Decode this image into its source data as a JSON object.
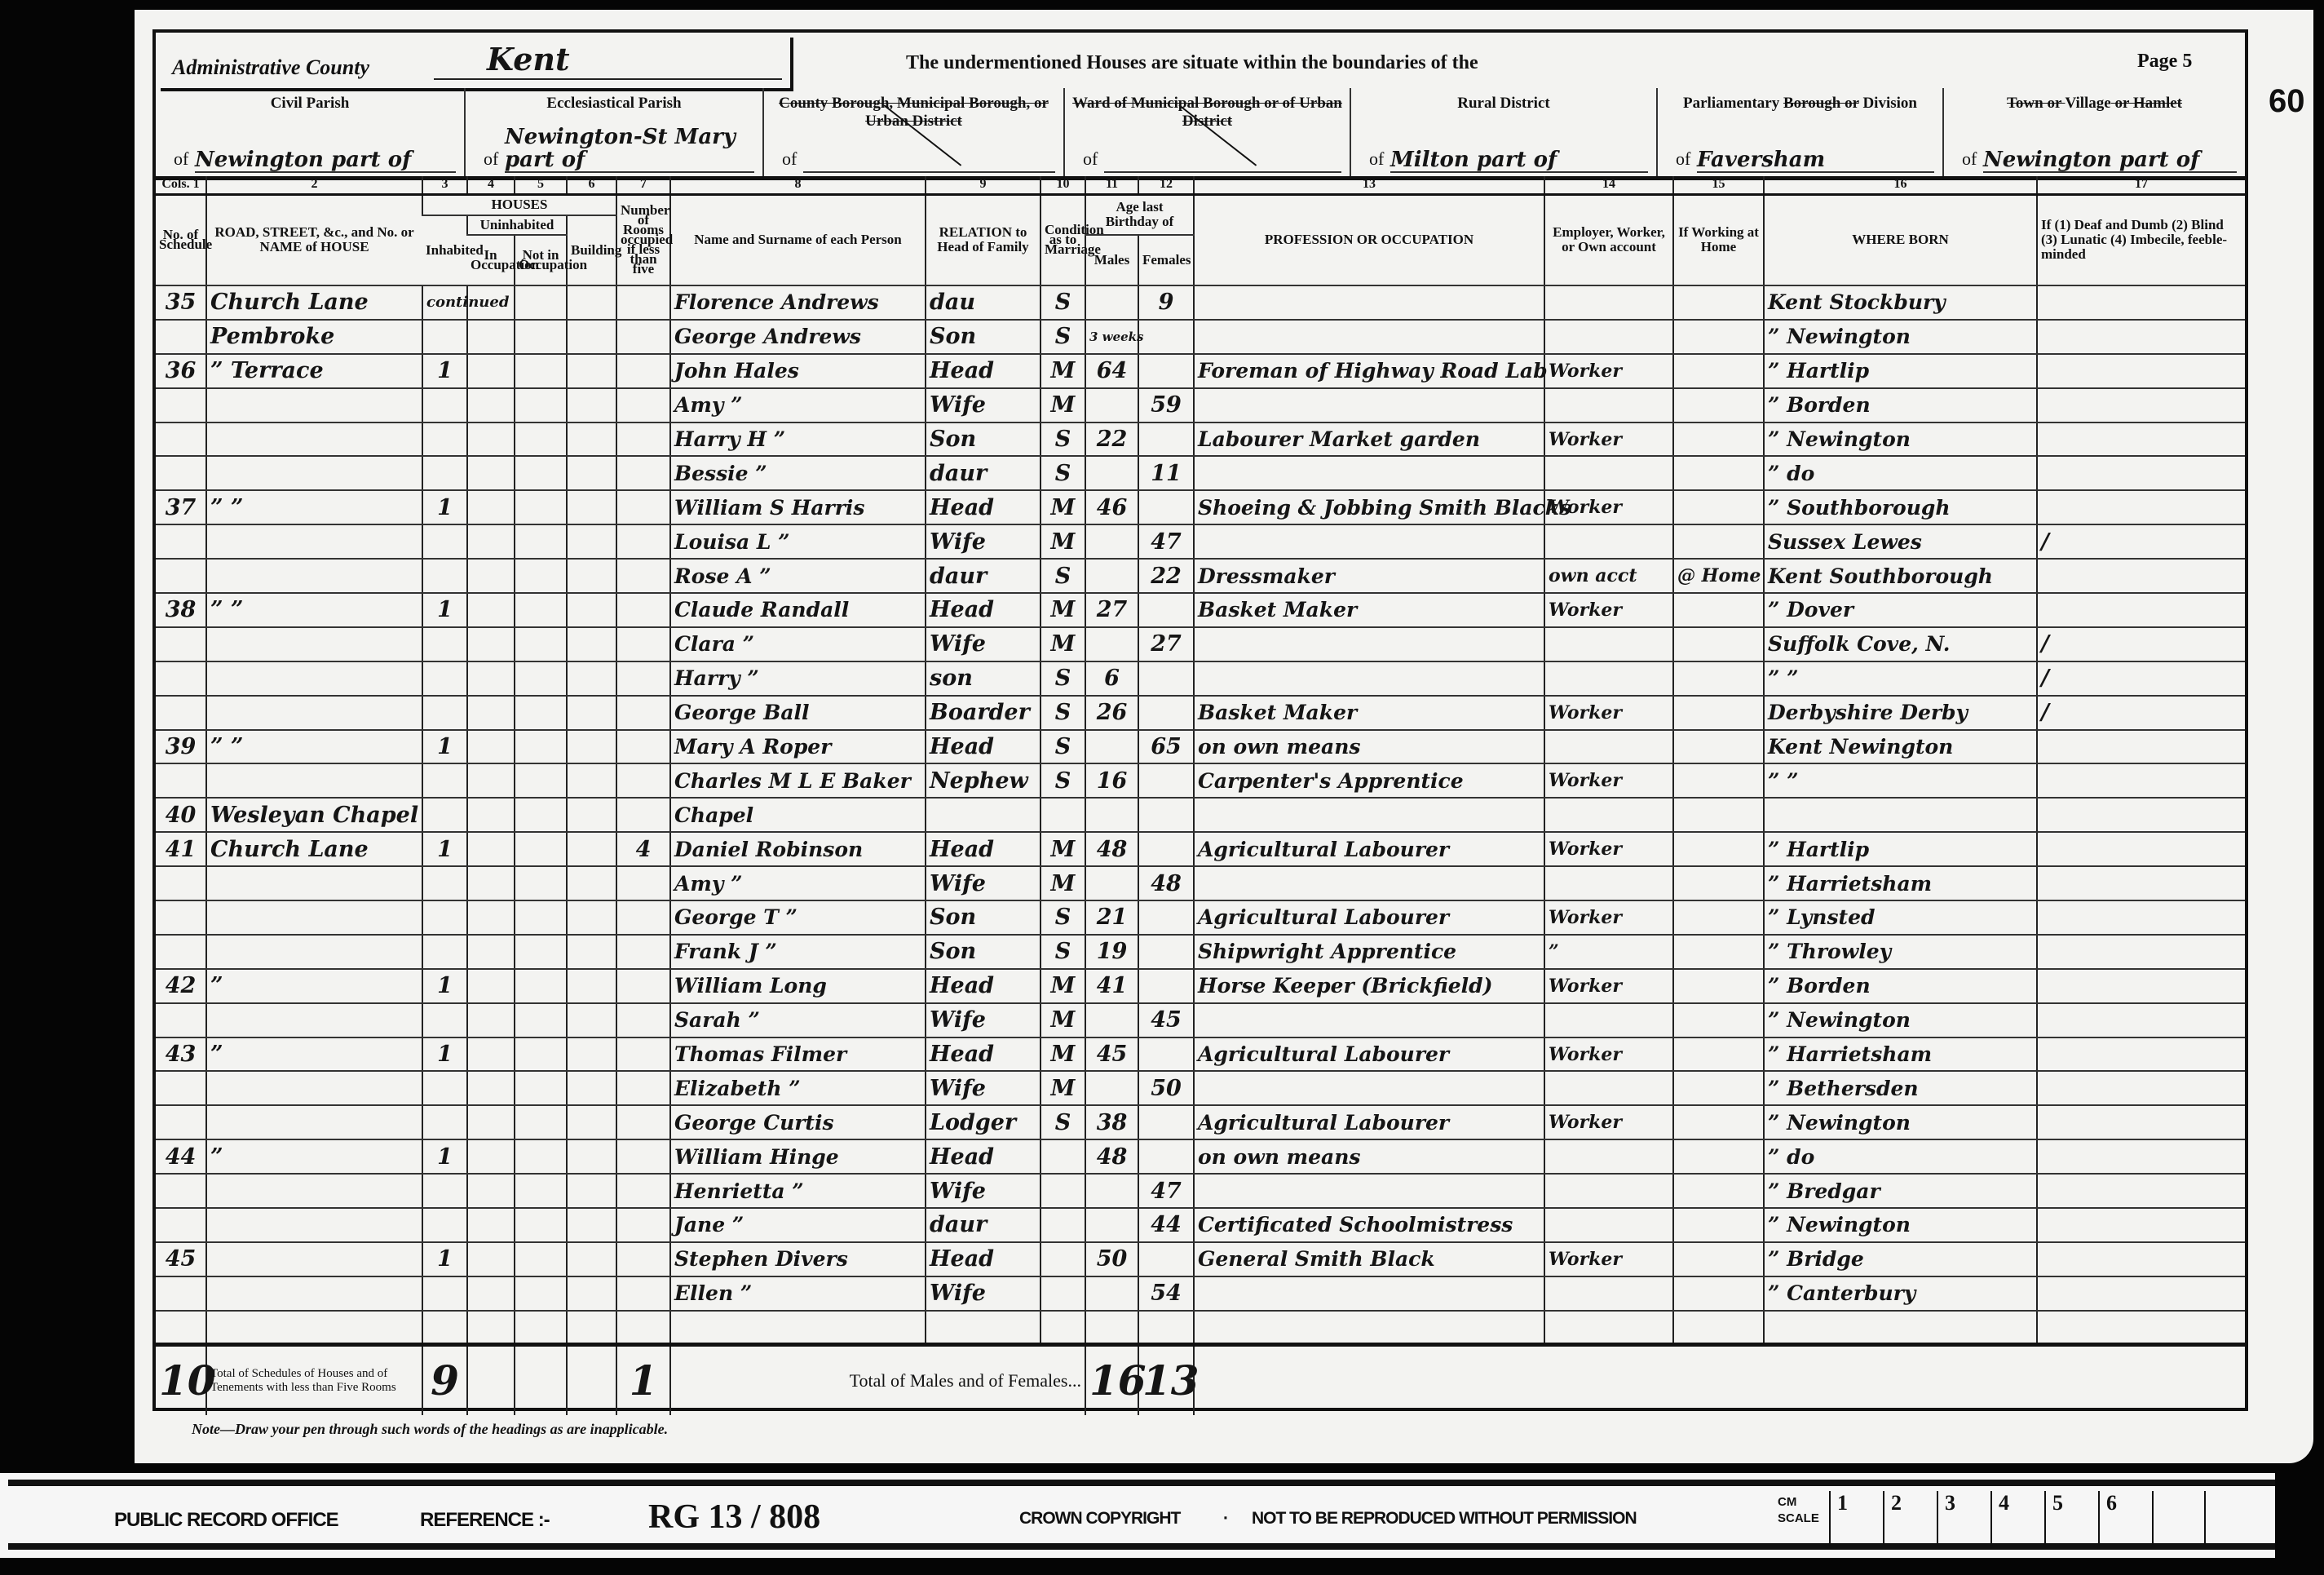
{
  "header": {
    "county_label": "Administrative County",
    "county_value": "Kent",
    "boundary_text": "The undermentioned Houses are situate within the boundaries of the",
    "page_label": "Page 5",
    "folio": "60"
  },
  "areas": [
    {
      "label_parts": [
        {
          "text": "Civil Parish",
          "struck": false
        }
      ],
      "of": "of",
      "value": "Newington part of",
      "struck_diag": false
    },
    {
      "label_parts": [
        {
          "text": "Ecclesiastical Parish",
          "struck": false
        }
      ],
      "of": "of",
      "value": "Newington-St Mary part of",
      "struck_diag": false
    },
    {
      "label_parts": [
        {
          "text": "County Borough, Municipal Borough, or Urban District",
          "struck": true
        }
      ],
      "of": "of",
      "value": "",
      "struck_diag": true
    },
    {
      "label_parts": [
        {
          "text": "Ward of Municipal Borough or of Urban District",
          "struck": true
        }
      ],
      "of": "of",
      "value": "",
      "struck_diag": true
    },
    {
      "label_parts": [
        {
          "text": "Rural District",
          "struck": false
        }
      ],
      "of": "of",
      "value": "Milton part of",
      "struck_diag": false
    },
    {
      "label_parts": [
        {
          "text": "Parliamentary ",
          "struck": false
        },
        {
          "text": "Borough",
          "struck": true
        },
        {
          "text": " or",
          "struck": true
        },
        {
          "text": " Division",
          "struck": false
        }
      ],
      "of": "of",
      "value": "Faversham",
      "struck_diag": false
    },
    {
      "label_parts": [
        {
          "text": "Town or ",
          "struck": true
        },
        {
          "text": "Village",
          "struck": false
        },
        {
          "text": " or Hamlet",
          "struck": true
        }
      ],
      "of": "of",
      "value": "Newington part of",
      "struck_diag": false
    }
  ],
  "column_numbers": [
    "Cols. 1",
    "2",
    "3",
    "4",
    "5",
    "6",
    "7",
    "8",
    "9",
    "10",
    "11",
    "12",
    "13",
    "14",
    "15",
    "16",
    "17"
  ],
  "columns": {
    "schedule": "No. of Schedule",
    "road": "ROAD, STREET, &c., and No. or NAME of HOUSE",
    "houses": "HOUSES",
    "inhabited": "Inhabited",
    "uninhabited": "Uninhabited",
    "in_occupation": "In Occupation",
    "not_in_occupation": "Not in Occupation",
    "building": "Building",
    "rooms": "Number of Rooms occupied if less than five",
    "name": "Name and Surname of each Person",
    "relation": "RELATION to Head of Family",
    "condition": "Condition as to Marriage",
    "age": "Age last Birthday of",
    "males": "Males",
    "females": "Females",
    "occupation": "PROFESSION OR OCCUPATION",
    "employment": "Employer, Worker, or Own account",
    "at_home": "If Working at Home",
    "born": "WHERE BORN",
    "infirmity": "If (1) Deaf and Dumb (2) Blind (3) Lunatic (4) Imbecile, feeble-minded"
  },
  "rows": [
    {
      "schedule": "35",
      "road": "Church Lane",
      "inhabited": "continued",
      "rooms": "",
      "name": "Florence Andrews",
      "relation": "dau",
      "condition": "S",
      "age_m": "",
      "age_f": "9",
      "occupation": "",
      "employment": "",
      "at_home": "",
      "born": "Kent Stockbury",
      "infirmity": ""
    },
    {
      "schedule": "",
      "road": "Pembroke",
      "inhabited": "",
      "rooms": "",
      "name": "George Andrews",
      "relation": "Son",
      "condition": "S",
      "age_m": "3 weeks",
      "age_f": "",
      "occupation": "",
      "employment": "",
      "at_home": "",
      "born": "” Newington",
      "infirmity": ""
    },
    {
      "schedule": "36",
      "road": "” Terrace",
      "inhabited": "1",
      "rooms": "",
      "name": "John Hales",
      "relation": "Head",
      "condition": "M",
      "age_m": "64",
      "age_f": "",
      "occupation": "Foreman of Highway Road Lab",
      "employment": "Worker",
      "at_home": "",
      "born": "” Hartlip",
      "infirmity": ""
    },
    {
      "schedule": "",
      "road": "",
      "inhabited": "",
      "rooms": "",
      "name": "Amy ”",
      "relation": "Wife",
      "condition": "M",
      "age_m": "",
      "age_f": "59",
      "occupation": "",
      "employment": "",
      "at_home": "",
      "born": "” Borden",
      "infirmity": ""
    },
    {
      "schedule": "",
      "road": "",
      "inhabited": "",
      "rooms": "",
      "name": "Harry H ”",
      "relation": "Son",
      "condition": "S",
      "age_m": "22",
      "age_f": "",
      "occupation": "Labourer Market garden",
      "employment": "Worker",
      "at_home": "",
      "born": "” Newington",
      "infirmity": ""
    },
    {
      "schedule": "",
      "road": "",
      "inhabited": "",
      "rooms": "",
      "name": "Bessie ”",
      "relation": "daur",
      "condition": "S",
      "age_m": "",
      "age_f": "11",
      "occupation": "",
      "employment": "",
      "at_home": "",
      "born": "” do",
      "infirmity": ""
    },
    {
      "schedule": "37",
      "road": "”        ”",
      "inhabited": "1",
      "rooms": "",
      "name": "William S Harris",
      "relation": "Head",
      "condition": "M",
      "age_m": "46",
      "age_f": "",
      "occupation": "Shoeing & Jobbing Smith Blacks",
      "employment": "Worker",
      "at_home": "",
      "born": "” Southborough",
      "infirmity": ""
    },
    {
      "schedule": "",
      "road": "",
      "inhabited": "",
      "rooms": "",
      "name": "Louisa L ”",
      "relation": "Wife",
      "condition": "M",
      "age_m": "",
      "age_f": "47",
      "occupation": "",
      "employment": "",
      "at_home": "",
      "born": "Sussex Lewes",
      "infirmity": "/"
    },
    {
      "schedule": "",
      "road": "",
      "inhabited": "",
      "rooms": "",
      "name": "Rose A ”",
      "relation": "daur",
      "condition": "S",
      "age_m": "",
      "age_f": "22",
      "occupation": "Dressmaker",
      "employment": "own acct",
      "at_home": "@ Home",
      "born": "Kent Southborough",
      "infirmity": ""
    },
    {
      "schedule": "38",
      "road": "”        ”",
      "inhabited": "1",
      "rooms": "",
      "name": "Claude Randall",
      "relation": "Head",
      "condition": "M",
      "age_m": "27",
      "age_f": "",
      "occupation": "Basket Maker",
      "employment": "Worker",
      "at_home": "",
      "born": "” Dover",
      "infirmity": ""
    },
    {
      "schedule": "",
      "road": "",
      "inhabited": "",
      "rooms": "",
      "name": "Clara ”",
      "relation": "Wife",
      "condition": "M",
      "age_m": "",
      "age_f": "27",
      "occupation": "",
      "employment": "",
      "at_home": "",
      "born": "Suffolk Cove, N.",
      "infirmity": "/"
    },
    {
      "schedule": "",
      "road": "",
      "inhabited": "",
      "rooms": "",
      "name": "Harry ”",
      "relation": "son",
      "condition": "S",
      "age_m": "6",
      "age_f": "",
      "occupation": "",
      "employment": "",
      "at_home": "",
      "born": "”   ”",
      "infirmity": "/"
    },
    {
      "schedule": "",
      "road": "",
      "inhabited": "",
      "rooms": "",
      "name": "George Ball",
      "relation": "Boarder",
      "condition": "S",
      "age_m": "26",
      "age_f": "",
      "occupation": "Basket Maker",
      "employment": "Worker",
      "at_home": "",
      "born": "Derbyshire Derby",
      "infirmity": "/"
    },
    {
      "schedule": "39",
      "road": "”        ”",
      "inhabited": "1",
      "rooms": "",
      "name": "Mary A Roper",
      "relation": "Head",
      "condition": "S",
      "age_m": "",
      "age_f": "65",
      "occupation": "on own means",
      "employment": "",
      "at_home": "",
      "born": "Kent Newington",
      "infirmity": ""
    },
    {
      "schedule": "",
      "road": "",
      "inhabited": "",
      "rooms": "",
      "name": "Charles M L E Baker",
      "relation": "Nephew",
      "condition": "S",
      "age_m": "16",
      "age_f": "",
      "occupation": "Carpenter's Apprentice",
      "employment": "Worker",
      "at_home": "",
      "born": "”   ”",
      "infirmity": ""
    },
    {
      "schedule": "40",
      "road": "Wesleyan Chapel",
      "inhabited": "",
      "rooms": "",
      "name": "Chapel",
      "relation": "",
      "condition": "",
      "age_m": "",
      "age_f": "",
      "occupation": "",
      "employment": "",
      "at_home": "",
      "born": "",
      "infirmity": ""
    },
    {
      "schedule": "41",
      "road": "Church Lane",
      "inhabited": "1",
      "rooms": "4",
      "name": "Daniel Robinson",
      "relation": "Head",
      "condition": "M",
      "age_m": "48",
      "age_f": "",
      "occupation": "Agricultural Labourer",
      "employment": "Worker",
      "at_home": "",
      "born": "” Hartlip",
      "infirmity": ""
    },
    {
      "schedule": "",
      "road": "",
      "inhabited": "",
      "rooms": "",
      "name": "Amy ”",
      "relation": "Wife",
      "condition": "M",
      "age_m": "",
      "age_f": "48",
      "occupation": "",
      "employment": "",
      "at_home": "",
      "born": "” Harrietsham",
      "infirmity": ""
    },
    {
      "schedule": "",
      "road": "",
      "inhabited": "",
      "rooms": "",
      "name": "George T ”",
      "relation": "Son",
      "condition": "S",
      "age_m": "21",
      "age_f": "",
      "occupation": "Agricultural Labourer",
      "employment": "Worker",
      "at_home": "",
      "born": "” Lynsted",
      "infirmity": ""
    },
    {
      "schedule": "",
      "road": "",
      "inhabited": "",
      "rooms": "",
      "name": "Frank J ”",
      "relation": "Son",
      "condition": "S",
      "age_m": "19",
      "age_f": "",
      "occupation": "Shipwright Apprentice",
      "employment": "”",
      "at_home": "",
      "born": "” Throwley",
      "infirmity": ""
    },
    {
      "schedule": "42",
      "road": "”",
      "inhabited": "1",
      "rooms": "",
      "name": "William Long",
      "relation": "Head",
      "condition": "M",
      "age_m": "41",
      "age_f": "",
      "occupation": "Horse Keeper (Brickfield)",
      "employment": "Worker",
      "at_home": "",
      "born": "” Borden",
      "infirmity": ""
    },
    {
      "schedule": "",
      "road": "",
      "inhabited": "",
      "rooms": "",
      "name": "Sarah ”",
      "relation": "Wife",
      "condition": "M",
      "age_m": "",
      "age_f": "45",
      "occupation": "",
      "employment": "",
      "at_home": "",
      "born": "” Newington",
      "infirmity": ""
    },
    {
      "schedule": "43",
      "road": "”",
      "inhabited": "1",
      "rooms": "",
      "name": "Thomas Filmer",
      "relation": "Head",
      "condition": "M",
      "age_m": "45",
      "age_f": "",
      "occupation": "Agricultural Labourer",
      "employment": "Worker",
      "at_home": "",
      "born": "” Harrietsham",
      "infirmity": ""
    },
    {
      "schedule": "",
      "road": "",
      "inhabited": "",
      "rooms": "",
      "name": "Elizabeth ”",
      "relation": "Wife",
      "condition": "M",
      "age_m": "",
      "age_f": "50",
      "occupation": "",
      "employment": "",
      "at_home": "",
      "born": "” Bethersden",
      "infirmity": ""
    },
    {
      "schedule": "",
      "road": "",
      "inhabited": "",
      "rooms": "",
      "name": "George Curtis",
      "relation": "Lodger",
      "condition": "S",
      "age_m": "38",
      "age_f": "",
      "occupation": "Agricultural Labourer",
      "employment": "Worker",
      "at_home": "",
      "born": "” Newington",
      "infirmity": ""
    },
    {
      "schedule": "44",
      "road": "”",
      "inhabited": "1",
      "rooms": "",
      "name": "William Hinge",
      "relation": "Head",
      "condition": "",
      "age_m": "48",
      "age_f": "",
      "occupation": "on own means",
      "employment": "",
      "at_home": "",
      "born": "” do",
      "infirmity": ""
    },
    {
      "schedule": "",
      "road": "",
      "inhabited": "",
      "rooms": "",
      "name": "Henrietta ”",
      "relation": "Wife",
      "condition": "",
      "age_m": "",
      "age_f": "47",
      "occupation": "",
      "employment": "",
      "at_home": "",
      "born": "” Bredgar",
      "infirmity": ""
    },
    {
      "schedule": "",
      "road": "",
      "inhabited": "",
      "rooms": "",
      "name": "Jane ”",
      "relation": "daur",
      "condition": "",
      "age_m": "",
      "age_f": "44",
      "occupation": "Certificated Schoolmistress",
      "employment": "",
      "at_home": "",
      "born": "” Newington",
      "infirmity": ""
    },
    {
      "schedule": "45",
      "road": "",
      "inhabited": "1",
      "rooms": "",
      "name": "Stephen Divers",
      "relation": "Head",
      "condition": "",
      "age_m": "50",
      "age_f": "",
      "occupation": "General Smith Black",
      "employment": "Worker",
      "at_home": "",
      "born": "” Bridge",
      "infirmity": ""
    },
    {
      "schedule": "",
      "road": "",
      "inhabited": "",
      "rooms": "",
      "name": "Ellen ”",
      "relation": "Wife",
      "condition": "",
      "age_m": "",
      "age_f": "54",
      "occupation": "",
      "employment": "",
      "at_home": "",
      "born": "” Canterbury",
      "infirmity": ""
    },
    {
      "schedule": "",
      "road": "",
      "inhabited": "",
      "rooms": "",
      "name": "",
      "relation": "",
      "condition": "",
      "age_m": "",
      "age_f": "",
      "occupation": "",
      "employment": "",
      "at_home": "",
      "born": "",
      "infirmity": ""
    }
  ],
  "totals": {
    "schedules": "10",
    "schedules_label": "Total of Schedules of Houses and of Tenements with less than Five Rooms",
    "inhabited": "9",
    "rooms": "1",
    "label": "Total of Males and of Females...",
    "males": "16",
    "females": "13"
  },
  "note": "Note—Draw your pen through such words of the headings as are inapplicable.",
  "footer": {
    "office": "PUBLIC RECORD OFFICE",
    "reference_label": "REFERENCE :-",
    "reference": "RG 13 / 808",
    "copyright": "CROWN COPYRIGHT",
    "separator": "·",
    "permission": "NOT TO BE REPRODUCED WITHOUT PERMISSION",
    "scale_label": "CM SCALE",
    "scale": [
      "1",
      "2",
      "3",
      "4",
      "5",
      "6",
      ""
    ]
  }
}
